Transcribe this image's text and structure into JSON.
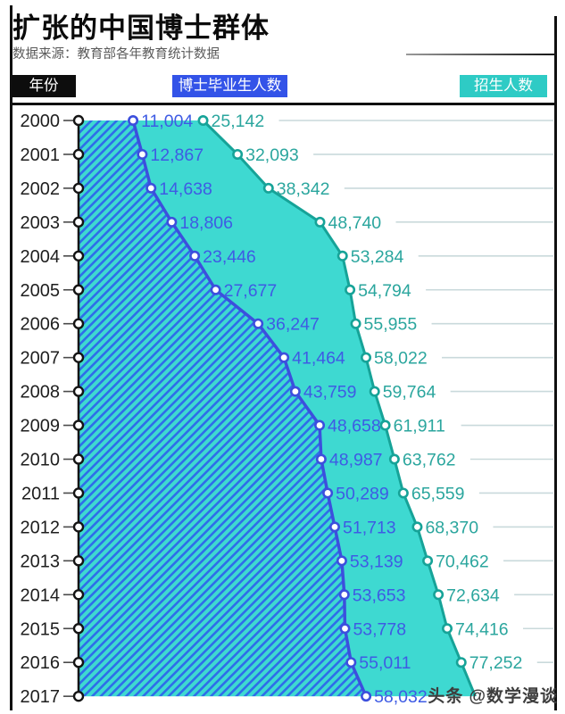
{
  "header": {
    "title": "扩张的中国博士群体",
    "subtitle": "数据来源：教育部各年教育统计数据"
  },
  "legend": {
    "year_label": "年份",
    "graduates_label": "博士毕业生人数",
    "enrollment_label": "招生人数"
  },
  "watermark": "头条 @数学漫谈",
  "colors": {
    "area_fill": "#3ed9d1",
    "hatch_stripe": "#2e6de9",
    "grad_line": "#3c4fdd",
    "grad_text": "#3e5be4",
    "enroll_line": "#16a398",
    "enroll_text": "#2ba69e",
    "grid": "#c9d9db",
    "axis": "#141414",
    "tick": "#4a4a4a",
    "year_text": "#1e1e1e",
    "legend_year_bg": "#0d0d0d",
    "legend_grad_bg": "#3353e8",
    "legend_enroll_bg": "#2ecbc5",
    "watermark_text": "#3d3d3d"
  },
  "chart_data": {
    "type": "area",
    "title": "扩张的中国博士群体",
    "source_note": "数据来源：教育部各年教育统计数据",
    "orientation": "vertical timeline: years run top-to-bottom on the left axis, values extend horizontally to the right",
    "legend_position": "top",
    "grid": true,
    "value_labels_shown": true,
    "years": [
      2000,
      2001,
      2002,
      2003,
      2004,
      2005,
      2006,
      2007,
      2008,
      2009,
      2010,
      2011,
      2012,
      2013,
      2014,
      2015,
      2016,
      2017
    ],
    "series": [
      {
        "name": "博士毕业生人数",
        "style": "blue line with diagonal-hatched fill back to the year axis",
        "values": [
          11004,
          12867,
          14638,
          18806,
          23446,
          27677,
          36247,
          41464,
          43759,
          48658,
          48987,
          50289,
          51713,
          53139,
          53653,
          53778,
          55011,
          58032
        ]
      },
      {
        "name": "招生人数",
        "style": "teal line with solid turquoise fill back to the year axis",
        "values": [
          25142,
          32093,
          38342,
          48740,
          53284,
          54794,
          55955,
          58022,
          59764,
          61911,
          63762,
          65559,
          68370,
          70462,
          72634,
          74416,
          77252,
          null
        ],
        "note_2017": "2017 value label not visible; area edge runs off the bottom under the watermark"
      }
    ]
  }
}
